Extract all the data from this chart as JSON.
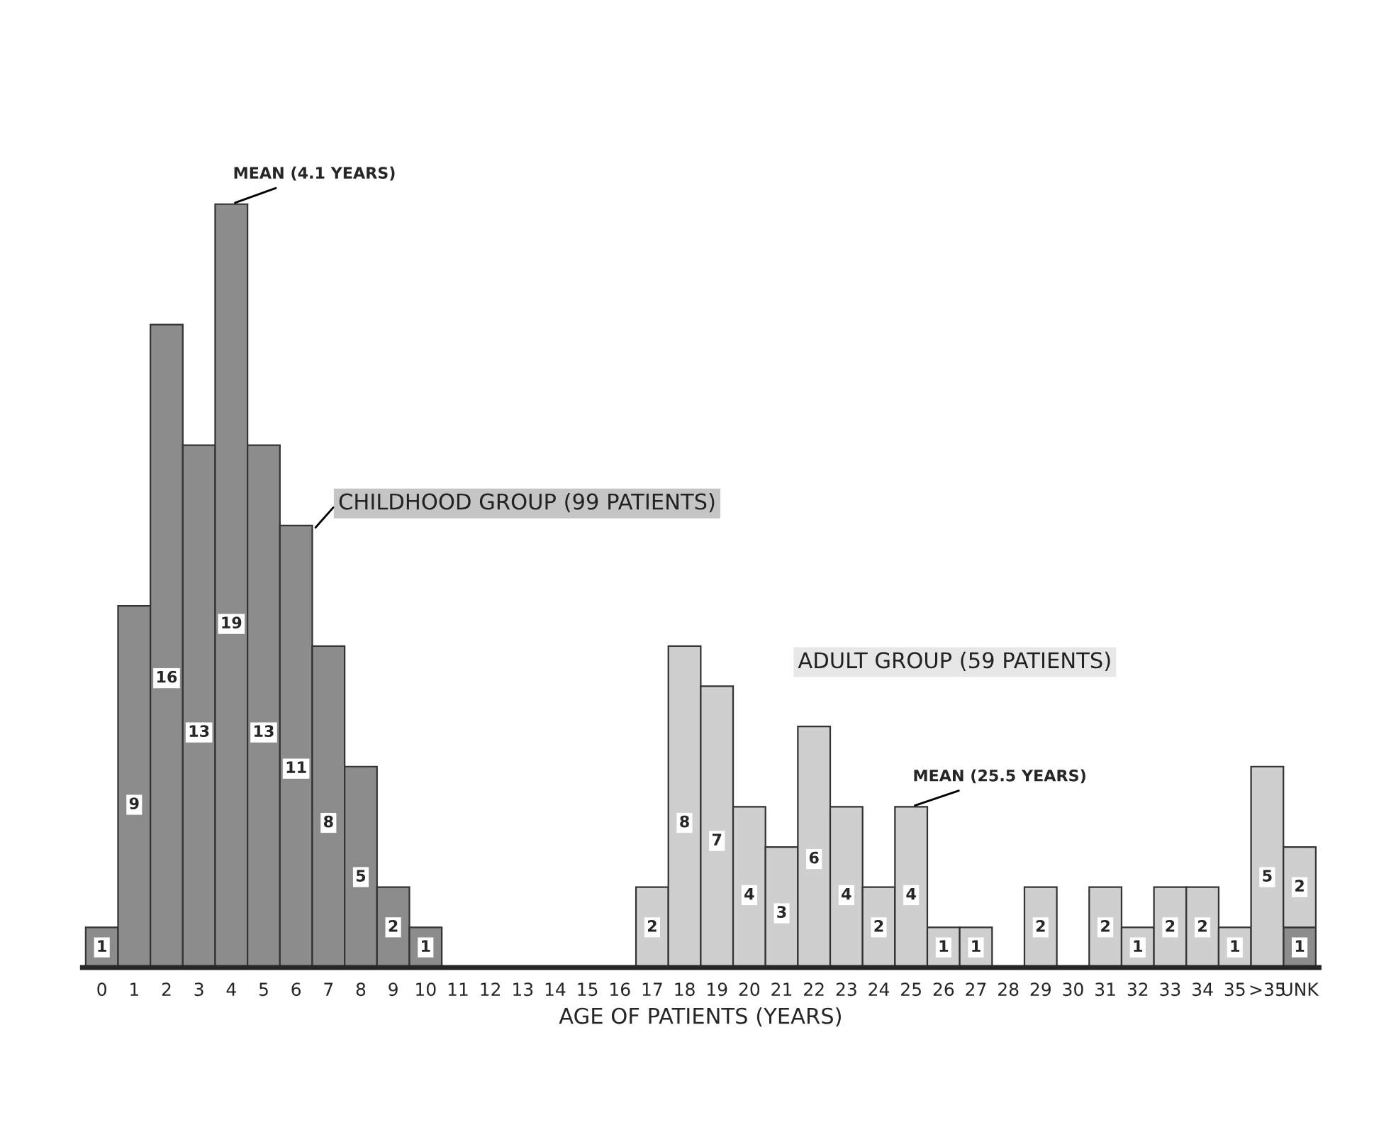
{
  "chart_data": {
    "type": "bar",
    "stacked": true,
    "xlabel": "AGE OF PATIENTS (YEARS)",
    "tick_labels": "x",
    "grid": false,
    "legend": false,
    "categories": [
      "0",
      "1",
      "2",
      "3",
      "4",
      "5",
      "6",
      "7",
      "8",
      "9",
      "10",
      "11",
      "12",
      "13",
      "14",
      "15",
      "16",
      "17",
      "18",
      "19",
      "20",
      "21",
      "22",
      "23",
      "24",
      "25",
      "26",
      "27",
      "28",
      "29",
      "30",
      "31",
      "32",
      "33",
      "34",
      "35",
      ">35",
      "UNK"
    ],
    "series": [
      {
        "name": "CHILDHOOD GROUP (99 PATIENTS)",
        "color": "#8c8c8c",
        "values": [
          1,
          9,
          16,
          13,
          19,
          13,
          11,
          8,
          5,
          2,
          1,
          0,
          0,
          0,
          0,
          0,
          0,
          null,
          null,
          null,
          null,
          null,
          null,
          null,
          null,
          null,
          null,
          null,
          null,
          null,
          null,
          null,
          null,
          null,
          null,
          null,
          null,
          1
        ],
        "value_labels": [
          "1",
          "9",
          "16",
          "13",
          "19",
          "13",
          "11",
          "8",
          "5",
          "2",
          "1",
          null,
          null,
          null,
          null,
          null,
          null,
          null,
          null,
          null,
          null,
          null,
          null,
          null,
          null,
          null,
          null,
          null,
          null,
          null,
          null,
          null,
          null,
          null,
          null,
          null,
          null,
          "1"
        ]
      },
      {
        "name": "ADULT GROUP (59 PATIENTS)",
        "color": "#cfcfcf",
        "values": [
          null,
          null,
          null,
          null,
          null,
          null,
          null,
          null,
          null,
          null,
          null,
          null,
          null,
          null,
          null,
          null,
          null,
          2,
          8,
          7,
          4,
          3,
          6,
          4,
          2,
          4,
          1,
          1,
          0,
          2,
          0,
          2,
          1,
          2,
          2,
          1,
          5,
          2
        ],
        "value_labels": [
          null,
          null,
          null,
          null,
          null,
          null,
          null,
          null,
          null,
          null,
          null,
          null,
          null,
          null,
          null,
          null,
          null,
          "2",
          "8",
          "7",
          "4",
          "3",
          "6",
          "4",
          "2",
          "4",
          "1",
          "1",
          null,
          "2",
          null,
          "2",
          "1",
          "2",
          "2",
          "1",
          "5",
          "2"
        ]
      }
    ],
    "annotations": [
      {
        "text": "MEAN (4.1 YEARS)",
        "x": "4",
        "y": 19
      },
      {
        "text": "MEAN (25.5 YEARS)",
        "x": "25",
        "y": 4
      }
    ]
  }
}
